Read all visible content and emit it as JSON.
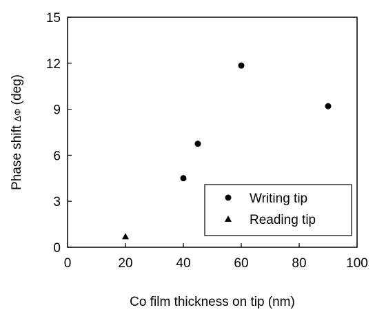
{
  "chart_data": {
    "type": "scatter",
    "xlabel": "Co film thickness on tip (nm)",
    "ylabel_prefix": "Phase shift ",
    "ylabel_symbol": "ΔΦ",
    "ylabel_suffix": " (deg)",
    "xlim": [
      0,
      100
    ],
    "ylim": [
      0,
      15
    ],
    "x_ticks": [
      0,
      20,
      40,
      60,
      80,
      100
    ],
    "y_ticks": [
      0,
      3,
      6,
      9,
      12,
      15
    ],
    "grid": false,
    "legend_position": "bottom-right",
    "series": [
      {
        "name": "Writing tip",
        "marker": "circle",
        "points": [
          {
            "x": 40,
            "y": 4.5
          },
          {
            "x": 45,
            "y": 6.75
          },
          {
            "x": 60,
            "y": 11.85
          },
          {
            "x": 90,
            "y": 9.2
          }
        ]
      },
      {
        "name": "Reading tip",
        "marker": "triangle",
        "points": [
          {
            "x": 20,
            "y": 0.7
          }
        ]
      }
    ],
    "colors": {
      "ink": "#000000",
      "background": "#ffffff"
    }
  }
}
